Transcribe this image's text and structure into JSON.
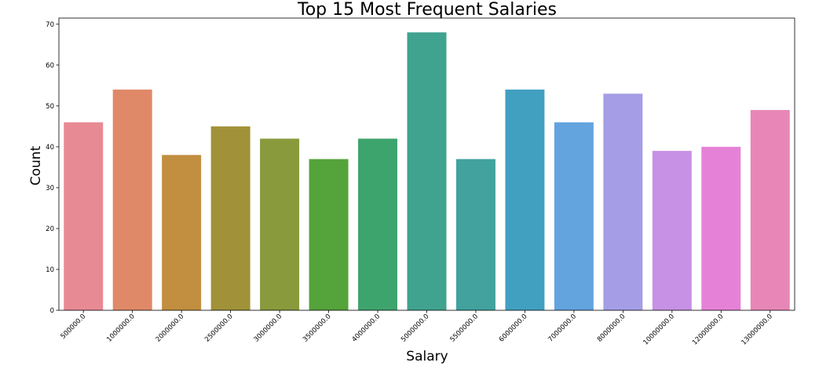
{
  "chart_data": {
    "type": "bar",
    "title": "Top 15 Most Frequent Salaries",
    "xlabel": "Salary",
    "ylabel": "Count",
    "categories": [
      "500000.0",
      "1000000.0",
      "2000000.0",
      "2500000.0",
      "3000000.0",
      "3500000.0",
      "4000000.0",
      "5000000.0",
      "5500000.0",
      "6000000.0",
      "7000000.0",
      "8000000.0",
      "10000000.0",
      "12000000.0",
      "13000000.0"
    ],
    "values": [
      46,
      54,
      38,
      45,
      42,
      37,
      42,
      68,
      37,
      54,
      46,
      53,
      39,
      40,
      49
    ],
    "colors": [
      "#e88a94",
      "#e08968",
      "#c28e40",
      "#a19239",
      "#889a3c",
      "#55a33b",
      "#3ea46d",
      "#40a38f",
      "#41a29e",
      "#41a0c0",
      "#63a4df",
      "#a59ee6",
      "#c791e6",
      "#e582d8",
      "#e887b7"
    ],
    "ylim": [
      0,
      71.5
    ],
    "yticks": [
      0,
      10,
      20,
      30,
      40,
      50,
      60,
      70
    ],
    "grid": false,
    "legend": "none"
  }
}
